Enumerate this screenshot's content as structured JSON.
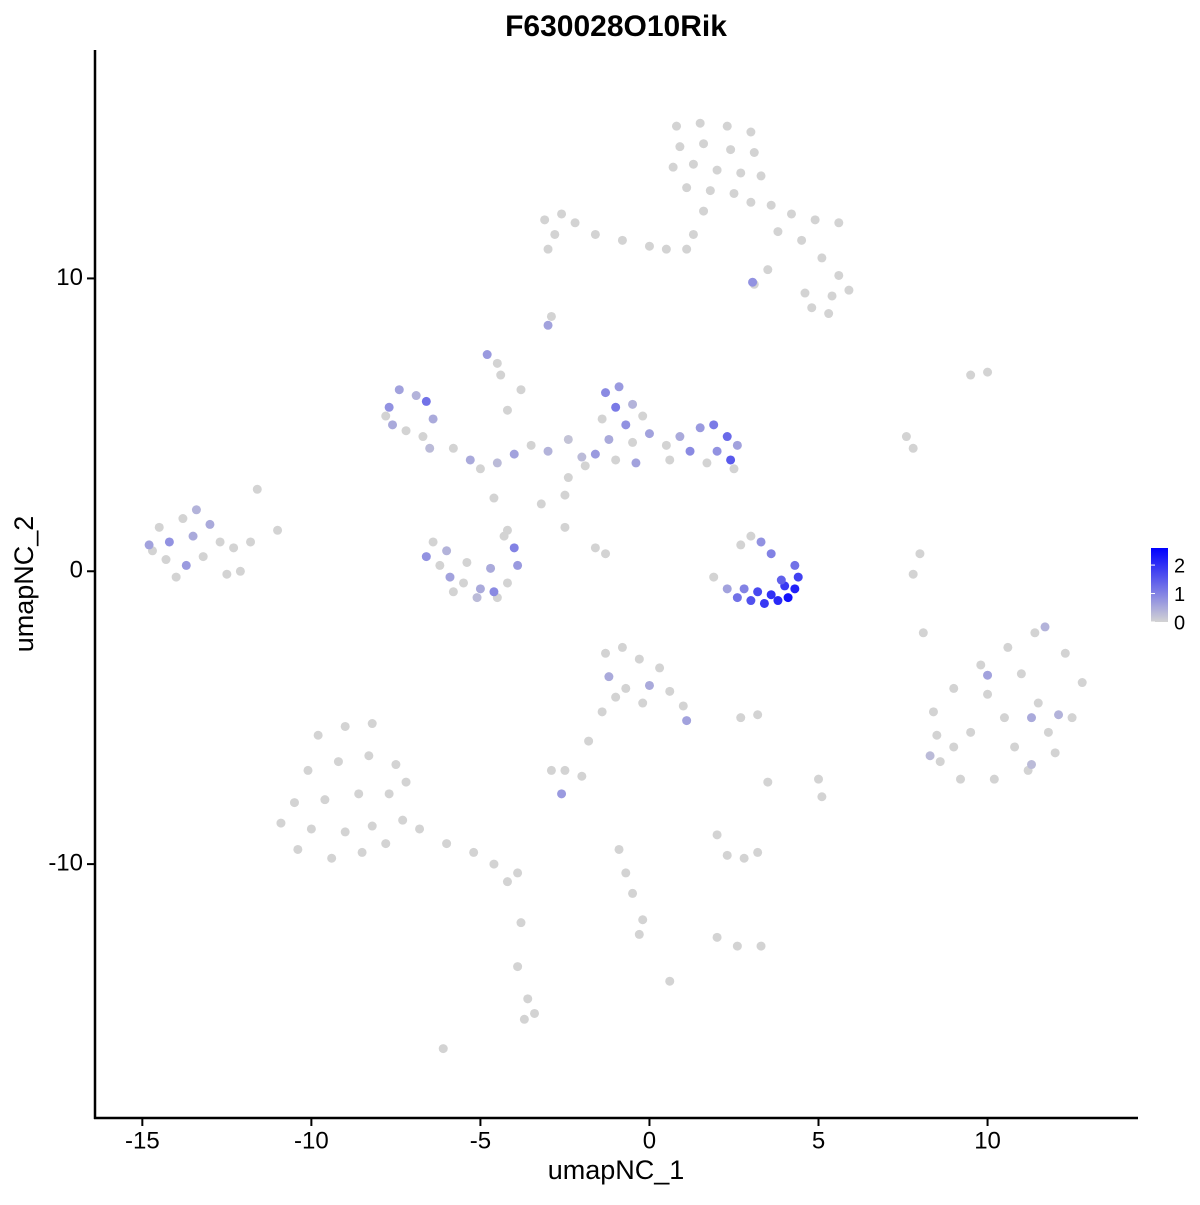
{
  "chart_data": {
    "type": "scatter",
    "title": "F630028O10Rik",
    "x_label": "umapNC_1",
    "y_label": "umapNC_2",
    "xlim": [
      -16.4,
      14.45
    ],
    "ylim": [
      -18.67,
      17.8
    ],
    "xticks": [
      -15,
      -10,
      -5,
      0,
      5,
      10
    ],
    "yticks": [
      -10,
      0,
      10
    ],
    "color_low": "#d3d3d3",
    "color_high": "#0000ff",
    "color_lim": [
      0,
      2.6
    ],
    "color_ticks": [
      0,
      1,
      2
    ],
    "x": [
      0.8,
      1.5,
      2.3,
      3.0,
      0.9,
      1.6,
      2.4,
      3.1,
      0.7,
      1.3,
      2.0,
      2.7,
      3.3,
      1.1,
      1.8,
      2.5,
      3.0,
      1.6,
      1.3,
      1.1,
      3.6,
      4.2,
      4.9,
      5.6,
      3.8,
      4.5,
      5.1,
      5.6,
      5.9,
      5.4,
      4.6,
      4.8,
      5.3,
      3.5,
      3.1,
      3.05,
      -3.1,
      -2.6,
      -2.2,
      -2.8,
      -1.6,
      -0.8,
      0.0,
      0.5,
      -3.0,
      -3.0,
      -2.9,
      -4.8,
      -4.5,
      -7.7,
      -7.4,
      -6.9,
      -6.6,
      -7.6,
      -7.2,
      -6.7,
      -6.5,
      -7.8,
      -6.4,
      -5.8,
      -5.3,
      -5.0,
      -4.5,
      -4.0,
      -3.5,
      -3.0,
      -4.2,
      -3.8,
      -4.4,
      -2.4,
      -2.5,
      -3.2,
      -4.6,
      -2.5,
      -1.6,
      -1.3,
      -4.2,
      -1.3,
      -0.9,
      -1.0,
      -0.5,
      -1.4,
      -0.7,
      -0.2,
      -1.2,
      -0.5,
      0.0,
      0.5,
      0.9,
      1.2,
      1.5,
      1.9,
      2.3,
      2.0,
      2.4,
      1.7,
      2.6,
      -1.6,
      -1.0,
      -0.4,
      0.6,
      -1.9,
      2.5,
      -2.0,
      -2.4,
      -6.6,
      -6.2,
      -5.9,
      -5.5,
      -5.0,
      -4.6,
      -4.2,
      -3.9,
      -4.0,
      -4.3,
      -6.4,
      -6.0,
      -5.4,
      -4.7,
      -5.8,
      -5.1,
      -4.5,
      -14.8,
      -14.5,
      -14.2,
      -13.8,
      -13.4,
      -13.0,
      -12.7,
      -12.3,
      -13.2,
      -13.7,
      -14.3,
      -14.0,
      -12.5,
      -12.1,
      -13.5,
      -14.7,
      -11.6,
      -11.0,
      -11.8,
      1.9,
      2.3,
      2.6,
      3.0,
      3.4,
      3.8,
      4.1,
      4.3,
      4.4,
      4.3,
      3.6,
      3.2,
      2.8,
      4.0,
      3.3,
      3.6,
      3.0,
      2.7,
      3.9,
      8.4,
      9.0,
      9.8,
      10.6,
      11.4,
      12.3,
      12.8,
      12.5,
      12.0,
      11.2,
      10.2,
      9.2,
      8.6,
      9.5,
      10.5,
      11.5,
      10.0,
      11.0,
      9.0,
      11.8,
      10.8,
      8.5,
      10.0,
      11.3,
      12.1,
      11.7,
      11.3,
      8.3,
      -1.3,
      -0.8,
      -0.3,
      0.3,
      -1.2,
      -0.7,
      0.0,
      0.6,
      1.0,
      1.1,
      -1.0,
      -0.2,
      -1.4,
      -1.8,
      -2.5,
      -2.9,
      -2.0,
      -2.6,
      2.7,
      3.2,
      -9.8,
      -9.0,
      -8.2,
      -10.1,
      -9.2,
      -8.3,
      -7.5,
      -10.5,
      -9.6,
      -8.6,
      -7.7,
      -7.2,
      -10.9,
      -10.0,
      -9.0,
      -8.2,
      -7.3,
      -10.4,
      -9.4,
      -8.5,
      -7.8,
      -6.8,
      -6.0,
      -5.2,
      -4.6,
      -3.9,
      -4.2,
      -3.8,
      -3.9,
      -3.6,
      -3.4,
      -3.7,
      -6.1,
      -0.9,
      -0.7,
      -0.5,
      -0.2,
      -0.3,
      0.6,
      2.0,
      2.3,
      2.8,
      3.2,
      2.0,
      2.6,
      3.5,
      5.0,
      5.1,
      3.3,
      7.8,
      8.0,
      8.1,
      9.5,
      10.0,
      7.6,
      7.8
    ],
    "values": [
      15.2,
      15.3,
      15.2,
      15.0,
      14.5,
      14.6,
      14.4,
      14.3,
      13.8,
      13.9,
      13.7,
      13.6,
      13.5,
      13.1,
      13.0,
      12.9,
      12.6,
      12.3,
      11.5,
      11.0,
      12.5,
      12.2,
      12.0,
      11.9,
      11.6,
      11.3,
      10.7,
      10.1,
      9.6,
      9.4,
      9.5,
      9.0,
      8.8,
      10.3,
      9.8,
      9.87,
      12.0,
      12.2,
      11.9,
      11.5,
      11.5,
      11.3,
      11.1,
      11.0,
      11.0,
      8.4,
      8.7,
      7.4,
      7.1,
      5.6,
      6.2,
      6.0,
      5.8,
      5.0,
      4.8,
      4.6,
      4.2,
      5.3,
      5.2,
      4.2,
      3.8,
      3.5,
      3.7,
      4.0,
      4.3,
      4.1,
      5.5,
      6.2,
      6.7,
      3.2,
      2.6,
      2.3,
      2.5,
      1.5,
      0.8,
      0.6,
      1.4,
      6.1,
      6.3,
      5.6,
      5.7,
      5.2,
      5.0,
      5.3,
      4.5,
      4.4,
      4.7,
      4.3,
      4.6,
      4.1,
      4.9,
      5.0,
      4.6,
      4.1,
      3.8,
      3.7,
      4.3,
      4.0,
      3.8,
      3.7,
      3.8,
      3.6,
      3.5,
      3.9,
      4.5,
      0.5,
      0.2,
      -0.2,
      -0.4,
      -0.6,
      -0.7,
      -0.4,
      0.2,
      0.8,
      1.2,
      1.0,
      0.7,
      0.3,
      0.1,
      -0.7,
      -0.9,
      -0.9,
      0.9,
      1.5,
      1.0,
      1.8,
      2.1,
      1.6,
      1.0,
      0.8,
      0.5,
      0.2,
      0.4,
      -0.2,
      -0.1,
      0.0,
      1.2,
      0.7,
      2.8,
      1.4,
      1.0,
      -0.2,
      -0.6,
      -0.9,
      -1.0,
      -1.1,
      -1.0,
      -0.9,
      -0.6,
      -0.2,
      0.2,
      -0.8,
      -0.7,
      -0.6,
      -0.5,
      1.0,
      0.6,
      1.2,
      0.9,
      -0.3,
      -4.8,
      -4.0,
      -3.2,
      -2.6,
      -2.1,
      -2.8,
      -3.8,
      -5.0,
      -6.2,
      -6.8,
      -7.1,
      -7.1,
      -6.5,
      -5.5,
      -5.0,
      -4.5,
      -4.2,
      -3.5,
      -6.0,
      -5.5,
      -6.0,
      -5.6,
      -3.55,
      -5.0,
      -4.9,
      -1.9,
      -6.6,
      -6.3,
      -2.8,
      -2.6,
      -3.0,
      -3.3,
      -3.6,
      -4.0,
      -3.9,
      -4.1,
      -4.6,
      -5.1,
      -4.3,
      -4.5,
      -4.8,
      -5.8,
      -6.8,
      -6.8,
      -7.0,
      -7.6,
      -5.0,
      -4.9,
      -5.6,
      -5.3,
      -5.2,
      -6.8,
      -6.5,
      -6.3,
      -6.6,
      -7.9,
      -7.8,
      -7.6,
      -7.6,
      -7.2,
      -8.6,
      -8.8,
      -8.9,
      -8.7,
      -8.5,
      -9.5,
      -9.8,
      -9.6,
      -9.3,
      -8.8,
      -9.3,
      -9.6,
      -10.0,
      -10.3,
      -10.6,
      -12.0,
      -13.5,
      -14.6,
      -15.1,
      -15.3,
      -16.3,
      -9.5,
      -10.3,
      -11.0,
      -11.9,
      -12.4,
      -14.0,
      -9.0,
      -9.7,
      -9.8,
      -9.6,
      -12.5,
      -12.8,
      -7.2,
      -7.1,
      -7.7,
      -12.8,
      -0.1,
      0.6,
      -2.1,
      6.7,
      6.8,
      4.6,
      4.2
    ],
    "expression": [
      0,
      0,
      0,
      0,
      0,
      0,
      0,
      0,
      0,
      0,
      0,
      0,
      0,
      0,
      0,
      0,
      0,
      0,
      0,
      0,
      0,
      0,
      0,
      0,
      0,
      0,
      0,
      0,
      0,
      0,
      0,
      0,
      0,
      0,
      0,
      0.8,
      0,
      0,
      0,
      0,
      0,
      0,
      0,
      0,
      0,
      0.6,
      0,
      0.7,
      0,
      0.8,
      0.6,
      0.4,
      1.2,
      0.5,
      0,
      0,
      0.3,
      0,
      0.5,
      0,
      0.5,
      0,
      0.3,
      0.6,
      0,
      0.4,
      0,
      0,
      0,
      0,
      0,
      0,
      0,
      0,
      0,
      0,
      0,
      0.9,
      0.7,
      1.1,
      0.4,
      0,
      0.8,
      0,
      0.5,
      0,
      0.6,
      0,
      0.5,
      0.9,
      0.7,
      1.1,
      1.3,
      0.8,
      1.5,
      0,
      0.6,
      0.7,
      0,
      0.6,
      0,
      0,
      0,
      0.3,
      0.2,
      0.8,
      0,
      0.6,
      0,
      0.5,
      0.9,
      0,
      0.7,
      1.0,
      0,
      0,
      0.4,
      0,
      0.5,
      0,
      0.3,
      0,
      0.6,
      0,
      0.8,
      0,
      0.4,
      0.5,
      0,
      0,
      0,
      0.7,
      0,
      0,
      0,
      0,
      0.5,
      0,
      0,
      0,
      0,
      0,
      0.6,
      1.2,
      1.6,
      1.9,
      2.1,
      2.4,
      2.2,
      1.8,
      1.2,
      2.0,
      1.7,
      1.0,
      1.9,
      0.8,
      1.0,
      0,
      0,
      1.4,
      0,
      0,
      0,
      0,
      0,
      0,
      0,
      0,
      0,
      0,
      0,
      0,
      0,
      0,
      0,
      0,
      0,
      0,
      0,
      0,
      0,
      0,
      0.6,
      0.5,
      0.4,
      0.4,
      0.3,
      0.3,
      0,
      0,
      0,
      0,
      0.5,
      0,
      0.5,
      0,
      0,
      0.6,
      0,
      0,
      0,
      0,
      0,
      0,
      0,
      0.7,
      0,
      0,
      0,
      0,
      0,
      0,
      0,
      0,
      0,
      0,
      0,
      0,
      0,
      0,
      0,
      0,
      0,
      0,
      0,
      0,
      0,
      0,
      0,
      0,
      0,
      0,
      0,
      0,
      0,
      0,
      0,
      0,
      0,
      0,
      0,
      0,
      0,
      0,
      0,
      0,
      0,
      0,
      0,
      0,
      0,
      0,
      0,
      0,
      0,
      0,
      0,
      0,
      0,
      0,
      0,
      0,
      0,
      0
    ]
  }
}
